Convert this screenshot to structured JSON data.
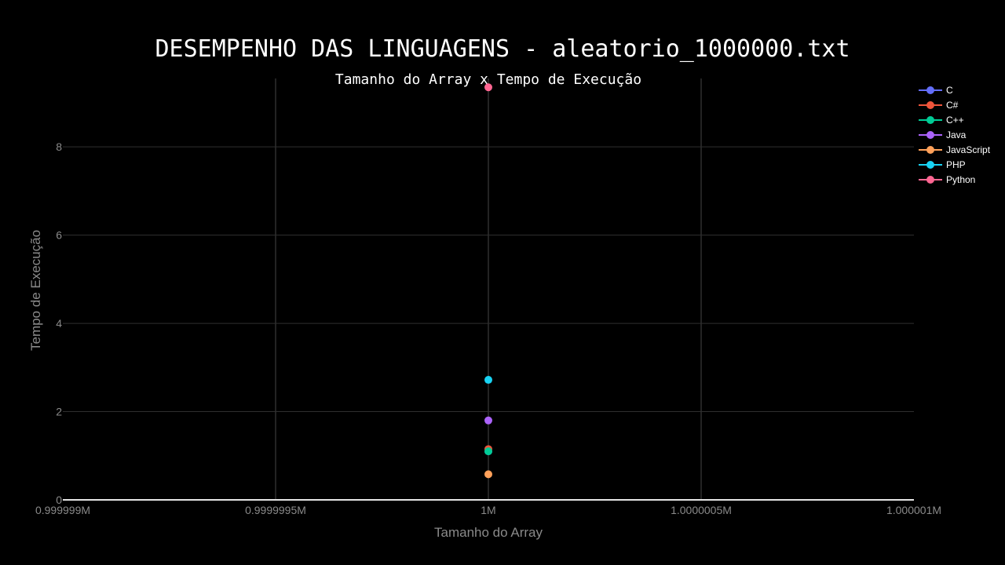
{
  "chart_data": {
    "type": "scatter",
    "title": "DESEMPENHO DAS LINGUAGENS - aleatorio_1000000.txt",
    "subtitle": "Tamanho do Array x Tempo de Execução",
    "xlabel": "Tamanho do Array",
    "ylabel": "Tempo de Execução",
    "xlim": [
      999999,
      1000001
    ],
    "ylim": [
      0,
      9.55
    ],
    "x_ticks": [
      999999,
      999999.5,
      1000000,
      1000000.5,
      1000001
    ],
    "x_tick_labels": [
      "0.999999M",
      "0.9999995M",
      "1M",
      "1.0000005M",
      "1.000001M"
    ],
    "y_ticks": [
      0,
      2,
      4,
      6,
      8
    ],
    "y_tick_labels": [
      "0",
      "2",
      "4",
      "6",
      "8"
    ],
    "grid": true,
    "legend_position": "top-right",
    "series": [
      {
        "name": "C",
        "color": "#636efa",
        "x": [
          1000000
        ],
        "y": [
          1.1
        ]
      },
      {
        "name": "C#",
        "color": "#ef553b",
        "x": [
          1000000
        ],
        "y": [
          1.15
        ]
      },
      {
        "name": "C++",
        "color": "#00cc96",
        "x": [
          1000000
        ],
        "y": [
          1.1
        ]
      },
      {
        "name": "Java",
        "color": "#ab63fa",
        "x": [
          1000000
        ],
        "y": [
          1.8
        ]
      },
      {
        "name": "JavaScript",
        "color": "#ffa15a",
        "x": [
          1000000
        ],
        "y": [
          0.58
        ]
      },
      {
        "name": "PHP",
        "color": "#19d3f3",
        "x": [
          1000000
        ],
        "y": [
          2.72
        ]
      },
      {
        "name": "Python",
        "color": "#ff6692",
        "x": [
          1000000
        ],
        "y": [
          9.35
        ]
      }
    ]
  }
}
